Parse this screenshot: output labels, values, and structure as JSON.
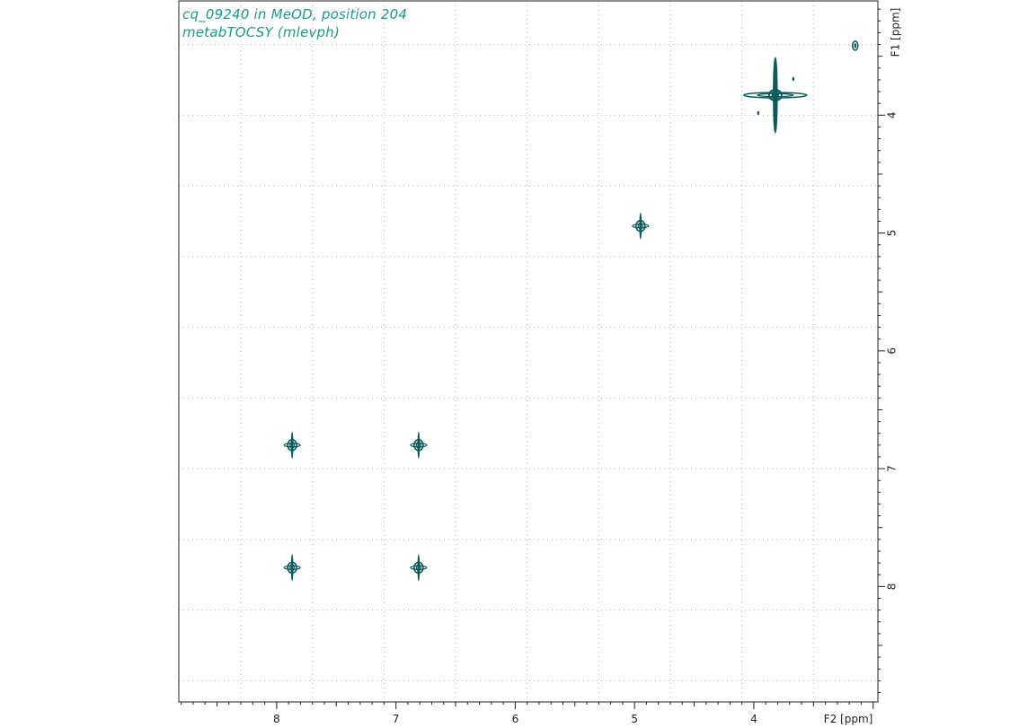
{
  "header": {
    "line1": "cq_09240 in MeOD, position 204",
    "line2": "metabTOCSY (mlevph)"
  },
  "colors": {
    "title": "#1a9a8a",
    "contour": "#0a5a5a",
    "axis": "#222222",
    "grid": "#b0b0b0"
  },
  "chart_data": {
    "type": "scatter",
    "title": "",
    "xlabel": "F2 [ppm]",
    "ylabel": "F1 [ppm]",
    "xlim": [
      8.82,
      2.96
    ],
    "ylim": [
      3.03,
      8.98
    ],
    "x_ticks": [
      8,
      7,
      6,
      5,
      4
    ],
    "y_ticks": [
      4,
      5,
      6,
      7,
      8
    ],
    "grid": true,
    "peaks": [
      {
        "f2": 3.15,
        "f1": 3.41,
        "size": "small"
      },
      {
        "f2": 3.82,
        "f1": 3.83,
        "size": "large"
      },
      {
        "f2": 4.95,
        "f1": 4.94,
        "size": "medium"
      },
      {
        "f2": 7.87,
        "f1": 6.8,
        "size": "medium"
      },
      {
        "f2": 6.81,
        "f1": 6.8,
        "size": "medium"
      },
      {
        "f2": 7.87,
        "f1": 7.84,
        "size": "medium"
      },
      {
        "f2": 6.81,
        "f1": 7.84,
        "size": "medium"
      }
    ]
  }
}
